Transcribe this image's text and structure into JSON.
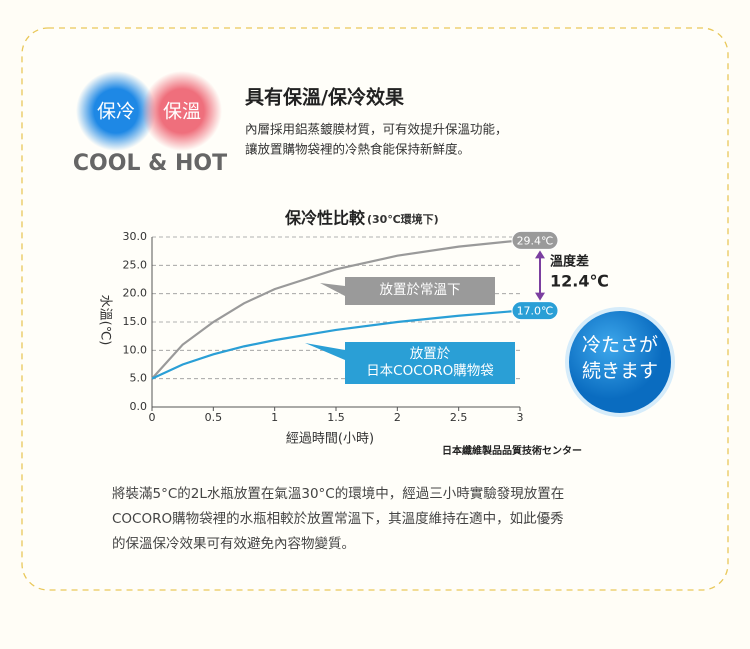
{
  "header": {
    "badge_cool": "保冷",
    "badge_hot": "保溫",
    "badge_caption": "COOL & HOT",
    "title": "具有保溫/保冷效果",
    "lines": [
      "內層採用鋁蒸鍍膜材質，可有效提升保溫功能，",
      "讓放置購物袋裡的冷熱食能保持新鮮度。"
    ]
  },
  "chart_data": {
    "type": "line",
    "title": "保冷性比較",
    "subtitle": "(30℃環境下)",
    "x_label": "經過時間(小時)",
    "y_label": "水溫(℃)",
    "x": [
      0,
      0.25,
      0.5,
      0.75,
      1,
      1.5,
      2,
      2.5,
      3
    ],
    "series": [
      {
        "name": "放置於常溫下",
        "color": "#9a9a9a",
        "values": [
          5,
          11,
          15,
          18.3,
          20.8,
          24.3,
          26.7,
          28.3,
          29.4
        ],
        "value_labels": [
          null,
          null,
          null,
          null,
          null,
          null,
          null,
          null,
          "29.4℃"
        ]
      },
      {
        "name": "放置於\n日本COCORO購物袋",
        "color": "#2a9fd6",
        "values": [
          5,
          7.5,
          9.3,
          10.7,
          11.8,
          13.6,
          15.0,
          16.1,
          17.0
        ],
        "value_labels": [
          null,
          null,
          null,
          null,
          null,
          null,
          null,
          null,
          "17.0℃"
        ]
      }
    ],
    "xlim": [
      0,
      3
    ],
    "xticks": [
      0,
      0.5,
      1,
      1.5,
      2,
      2.5,
      3
    ],
    "ylim": [
      0,
      30
    ],
    "yticks": [
      {
        "value": 0,
        "label": "0.0"
      },
      {
        "value": 5,
        "label": "5.0"
      },
      {
        "value": 10,
        "label": "10.0"
      },
      {
        "value": 15,
        "label": "15.0"
      },
      {
        "value": 20,
        "label": "20.0"
      },
      {
        "value": 25,
        "label": "25.0"
      },
      {
        "value": 30,
        "label": "30.0"
      }
    ],
    "grid": true,
    "annotations": [
      "溫度差",
      "12.4℃"
    ],
    "source": "日本纖維製品品質技術センター",
    "badge": "冷たさが\n続きます"
  },
  "body": {
    "lines": [
      "將裝滿5°C的2L水瓶放置在氣溫30°C的環境中，經過三小時實驗發現放置在",
      "COCORO購物袋裡的水瓶相較於放置常溫下，其溫度維持在適中，如此優秀",
      "的保溫保冷效果可有效避免內容物變質。"
    ]
  }
}
